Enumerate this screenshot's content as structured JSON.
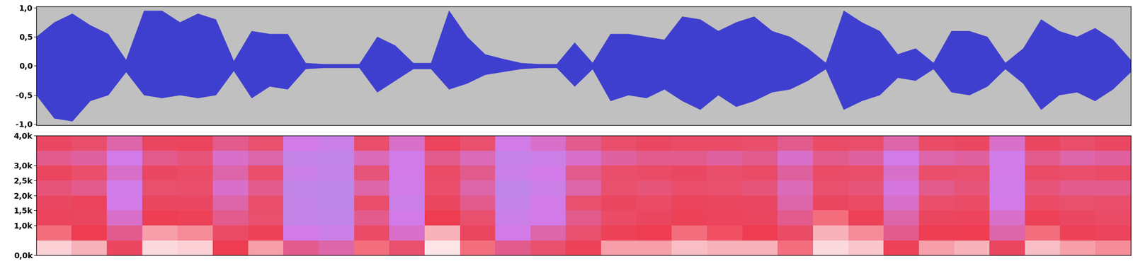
{
  "chart_data": [
    {
      "type": "area",
      "x": [
        0,
        1,
        2,
        3,
        4,
        5,
        6,
        7,
        8,
        9,
        10,
        11,
        12,
        13,
        14,
        15,
        16,
        17,
        18,
        19,
        20,
        21,
        22,
        23,
        24,
        25,
        26,
        27,
        28,
        29,
        30,
        31,
        32,
        33,
        34,
        35,
        36,
        37,
        38,
        39,
        40,
        41,
        42,
        43,
        44,
        45,
        46,
        47,
        48,
        49,
        50,
        51,
        52,
        53,
        54,
        55,
        56,
        57,
        58,
        59,
        60,
        61
      ],
      "values": [
        0.5,
        0.75,
        0.9,
        0.7,
        0.55,
        0.1,
        0.95,
        0.95,
        0.75,
        0.9,
        0.8,
        0.08,
        0.6,
        0.55,
        0.55,
        0.05,
        0.03,
        0.03,
        0.03,
        0.5,
        0.35,
        0.05,
        0.05,
        0.95,
        0.5,
        0.2,
        0.12,
        0.05,
        0.03,
        0.03,
        0.4,
        0.05,
        0.55,
        0.55,
        0.5,
        0.45,
        0.85,
        0.8,
        0.6,
        0.75,
        0.85,
        0.6,
        0.5,
        0.3,
        0.05,
        0.95,
        0.75,
        0.6,
        0.2,
        0.3,
        0.05,
        0.6,
        0.6,
        0.5,
        0.05,
        0.3,
        0.8,
        0.6,
        0.5,
        0.65,
        0.45,
        0.1
      ],
      "lows": [
        -0.5,
        -0.9,
        -0.95,
        -0.6,
        -0.5,
        -0.1,
        -0.5,
        -0.55,
        -0.5,
        -0.55,
        -0.5,
        -0.08,
        -0.55,
        -0.35,
        -0.4,
        -0.05,
        -0.03,
        -0.03,
        -0.03,
        -0.45,
        -0.25,
        -0.05,
        -0.05,
        -0.4,
        -0.3,
        -0.15,
        -0.1,
        -0.05,
        -0.03,
        -0.03,
        -0.35,
        -0.05,
        -0.6,
        -0.5,
        -0.55,
        -0.4,
        -0.6,
        -0.75,
        -0.5,
        -0.7,
        -0.6,
        -0.45,
        -0.4,
        -0.25,
        -0.05,
        -0.75,
        -0.6,
        -0.5,
        -0.2,
        -0.25,
        -0.05,
        -0.45,
        -0.5,
        -0.35,
        -0.05,
        -0.3,
        -0.75,
        -0.5,
        -0.45,
        -0.6,
        -0.4,
        -0.1
      ],
      "color": "#3f3fcf",
      "xlim": [
        0,
        61
      ],
      "ylim": [
        -1.02,
        1.02
      ],
      "yticks": [
        {
          "value": 1.0,
          "label": "1,0"
        },
        {
          "value": 0.5,
          "label": "0,5"
        },
        {
          "value": 0.0,
          "label": "0,0"
        },
        {
          "value": -0.5,
          "label": "-0,5"
        },
        {
          "value": -1.0,
          "label": "-1,0"
        }
      ],
      "tick_labels": "y"
    },
    {
      "type": "heatmap",
      "row_edges": [
        0,
        500,
        1000,
        1500,
        2000,
        2500,
        3000,
        3500,
        4000
      ],
      "cells": [
        [
          95,
          92,
          70,
          96,
          95,
          80,
          90,
          55,
          50,
          85,
          60,
          97,
          85,
          55,
          60,
          75,
          90,
          90,
          93,
          92,
          92,
          85,
          96,
          94,
          75,
          90,
          92,
          70,
          93,
          90,
          88
        ],
        [
          85,
          80,
          55,
          90,
          88,
          65,
          75,
          40,
          35,
          65,
          45,
          92,
          70,
          40,
          50,
          60,
          75,
          80,
          85,
          82,
          80,
          65,
          92,
          88,
          55,
          78,
          80,
          50,
          85,
          75,
          72
        ],
        [
          72,
          70,
          45,
          78,
          75,
          55,
          60,
          30,
          28,
          55,
          40,
          80,
          60,
          35,
          40,
          55,
          65,
          70,
          75,
          72,
          70,
          55,
          85,
          75,
          50,
          70,
          72,
          45,
          75,
          68,
          65
        ],
        [
          68,
          72,
          40,
          70,
          68,
          50,
          62,
          30,
          25,
          62,
          35,
          70,
          55,
          30,
          40,
          60,
          70,
          65,
          72,
          70,
          68,
          50,
          70,
          65,
          45,
          62,
          65,
          40,
          65,
          60,
          62
        ],
        [
          58,
          55,
          38,
          60,
          62,
          45,
          55,
          28,
          25,
          50,
          38,
          62,
          50,
          28,
          35,
          50,
          60,
          58,
          62,
          60,
          58,
          48,
          60,
          58,
          42,
          55,
          58,
          38,
          58,
          55,
          55
        ],
        [
          70,
          62,
          45,
          68,
          65,
          50,
          62,
          35,
          30,
          58,
          40,
          65,
          55,
          35,
          40,
          55,
          62,
          65,
          68,
          62,
          65,
          52,
          65,
          62,
          45,
          62,
          60,
          40,
          65,
          62,
          65
        ],
        [
          55,
          52,
          40,
          55,
          58,
          45,
          50,
          30,
          28,
          48,
          38,
          55,
          48,
          32,
          35,
          45,
          52,
          55,
          55,
          52,
          55,
          45,
          55,
          52,
          40,
          50,
          52,
          38,
          55,
          50,
          52
        ],
        [
          68,
          62,
          50,
          70,
          72,
          55,
          60,
          40,
          35,
          62,
          45,
          72,
          60,
          40,
          45,
          55,
          62,
          68,
          65,
          65,
          62,
          55,
          65,
          62,
          50,
          65,
          68,
          45,
          70,
          62,
          68
        ]
      ],
      "clim": [
        0,
        100
      ],
      "xlim": [
        0,
        61
      ],
      "ylim": [
        0,
        4000
      ],
      "yticks": [
        {
          "value": 4000,
          "label": "4,0k"
        },
        {
          "value": 3000,
          "label": "3,0k"
        },
        {
          "value": 2500,
          "label": "2,5k"
        },
        {
          "value": 2000,
          "label": "2,0k"
        },
        {
          "value": 1500,
          "label": "1,5k"
        },
        {
          "value": 1000,
          "label": "1,0k"
        },
        {
          "value": 0,
          "label": "0,0k"
        }
      ],
      "tick_labels": "y"
    }
  ]
}
